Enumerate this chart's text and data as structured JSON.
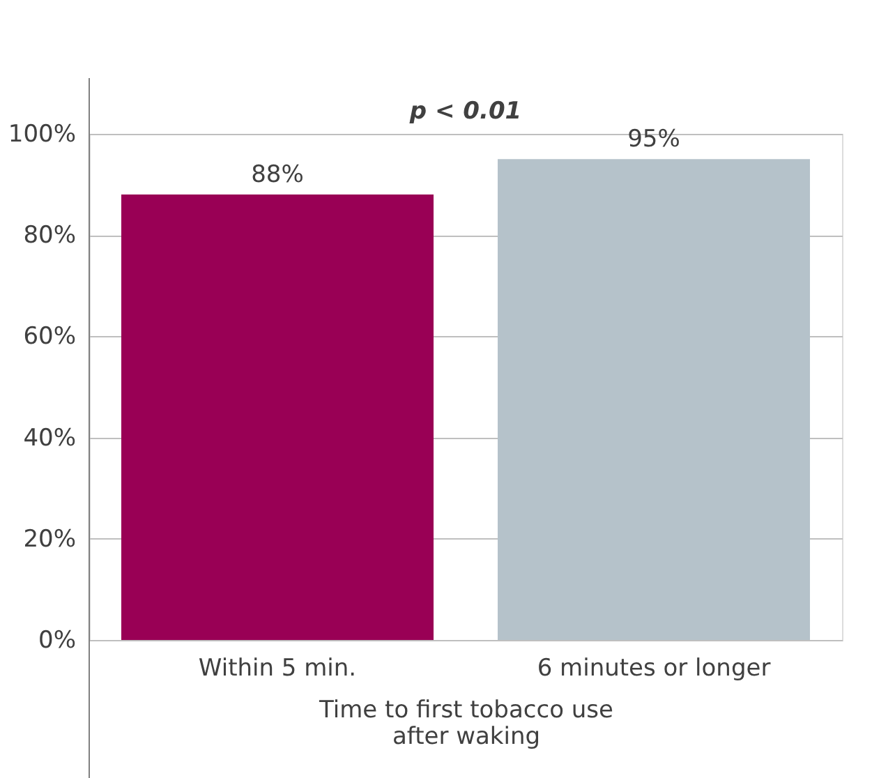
{
  "chart_data": {
    "type": "bar",
    "categories": [
      "Within 5 min.",
      "6 minutes or longer"
    ],
    "values": [
      88,
      95
    ],
    "colors": [
      "#990055",
      "#b5c2ca"
    ],
    "data_labels": true,
    "value_labels": [
      "88%",
      "95%"
    ],
    "xlabel": "Time to first tobacco use\nafter waking",
    "ylim": [
      0,
      100
    ],
    "yticks": [
      {
        "value": 0,
        "label": "0%"
      },
      {
        "value": 20,
        "label": "20%"
      },
      {
        "value": 40,
        "label": "40%"
      },
      {
        "value": 60,
        "label": "60%"
      },
      {
        "value": 80,
        "label": "80%"
      },
      {
        "value": 100,
        "label": "100%"
      }
    ],
    "grid": "y",
    "annotations": [
      "p < 0.01"
    ]
  }
}
